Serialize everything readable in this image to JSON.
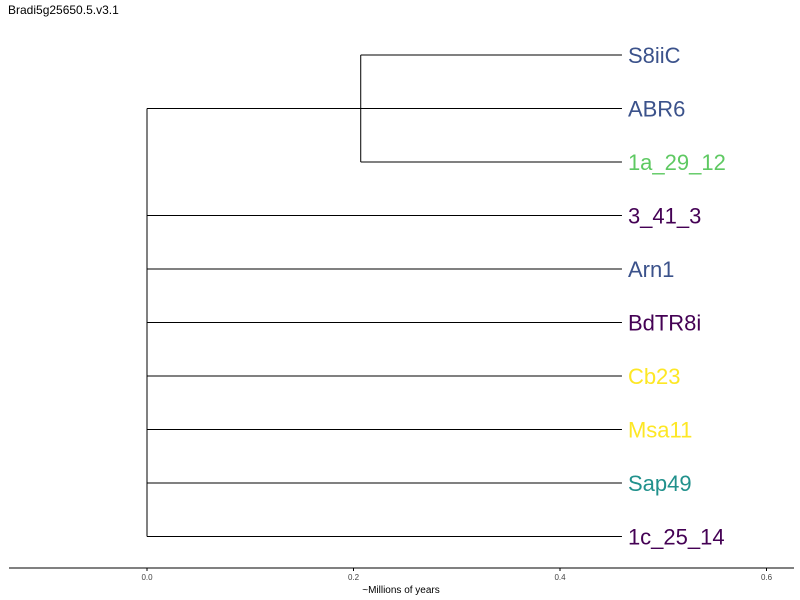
{
  "title": "Bradi5g25650.5.v3.1",
  "axis": {
    "label": "~Millions of years",
    "ticks": [
      0.0,
      0.2,
      0.4,
      0.6
    ],
    "tick_labels": [
      "0.0",
      "0.2",
      "0.4",
      "0.6"
    ],
    "range": [
      -0.133,
      0.627
    ]
  },
  "tree": {
    "root_age": 0.0,
    "leaves": [
      {
        "name": "S8iiC",
        "color": "#3b528b",
        "depth": 0.46
      },
      {
        "name": "ABR6",
        "color": "#3b528b",
        "depth": 0.46
      },
      {
        "name": "1a_29_12",
        "color": "#5ec962",
        "depth": 0.46
      },
      {
        "name": "3_41_3",
        "color": "#440154",
        "depth": 0.46
      },
      {
        "name": "Arn1",
        "color": "#3b528b",
        "depth": 0.46
      },
      {
        "name": "BdTR8i",
        "color": "#440154",
        "depth": 0.46
      },
      {
        "name": "Cb23",
        "color": "#fde725",
        "depth": 0.46
      },
      {
        "name": "Msa11",
        "color": "#fde725",
        "depth": 0.46
      },
      {
        "name": "Sap49",
        "color": "#21918c",
        "depth": 0.46
      },
      {
        "name": "1c_25_14",
        "color": "#440154",
        "depth": 0.46
      }
    ],
    "clades": [
      {
        "members": [
          "S8iiC",
          "ABR6",
          "1a_29_12"
        ],
        "node_depth": 0.207
      }
    ]
  }
}
